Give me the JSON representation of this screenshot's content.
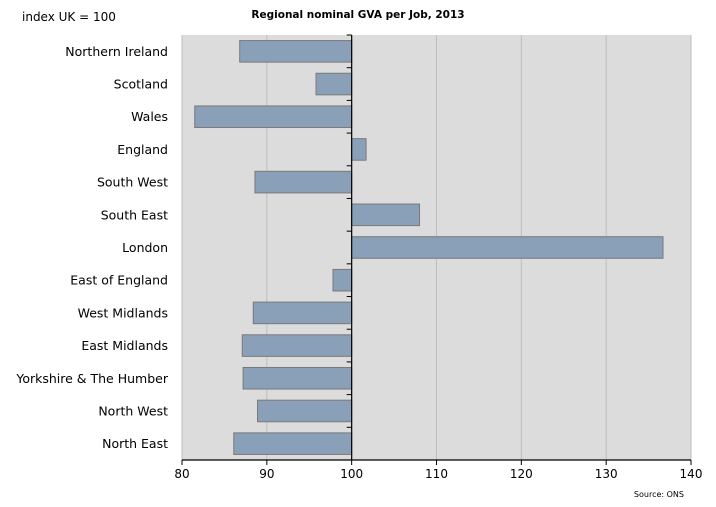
{
  "chart_data": {
    "type": "bar",
    "orientation": "horizontal",
    "title": "Regional nominal GVA per Job, 2013",
    "ylabel": "index UK = 100",
    "source": "Source: ONS",
    "categories": [
      "Northern Ireland",
      "Scotland",
      "Wales",
      "England",
      "South West",
      "South East",
      "London",
      "East of England",
      "West Midlands",
      "East Midlands",
      "Yorkshire & The Humber",
      "North West",
      "North East"
    ],
    "values": [
      86.8,
      95.8,
      81.5,
      101.7,
      88.6,
      108.0,
      136.7,
      97.8,
      88.4,
      87.1,
      87.2,
      88.9,
      86.1
    ],
    "baseline": 100,
    "xlim": [
      80,
      140
    ],
    "xticks": [
      80,
      90,
      100,
      110,
      120,
      130,
      140
    ],
    "grid": true,
    "legend": "none",
    "colors": {
      "bar": "#8a9fb8",
      "bar_stroke": "#7a7a7a",
      "plot_bg": "#dcdcdc",
      "grid": "#bdbdbd"
    }
  }
}
